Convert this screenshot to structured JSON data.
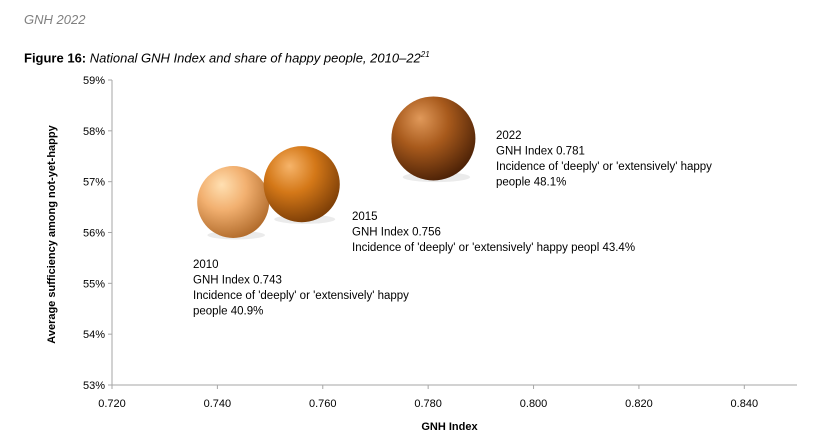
{
  "header": {
    "running_head": "GNH 2022"
  },
  "figure": {
    "label": "Figure 16:",
    "title": "National GNH Index and share of happy people, 2010–22",
    "footnote": "21"
  },
  "chart_data": {
    "type": "scatter",
    "xlabel": "GNH Index",
    "ylabel": "Average sufficiency among not-yet-happy",
    "xlim": [
      0.72,
      0.85
    ],
    "ylim": [
      53,
      59
    ],
    "x_ticks": [
      "0.720",
      "0.740",
      "0.760",
      "0.780",
      "0.800",
      "0.820",
      "0.840"
    ],
    "y_ticks": [
      "53%",
      "54%",
      "55%",
      "56%",
      "57%",
      "58%",
      "59%"
    ],
    "grid": false,
    "points": [
      {
        "x": 0.743,
        "y": 56.6,
        "happy_share": 40.9,
        "color_light": "#ffe0b2",
        "color_mid": "#f2b070",
        "color_dark": "#b06a2a",
        "annotation": [
          "2010",
          "GNH Index 0.743",
          "Incidence of 'deeply' or 'extensively' happy",
          "people 40.9%"
        ]
      },
      {
        "x": 0.756,
        "y": 56.95,
        "happy_share": 43.4,
        "color_light": "#f6b46a",
        "color_mid": "#d47818",
        "color_dark": "#7a3c06",
        "annotation": [
          "2015",
          "GNH Index 0.756",
          "Incidence of 'deeply' or 'extensively' happy peopl 43.4%"
        ]
      },
      {
        "x": 0.781,
        "y": 57.85,
        "happy_share": 48.1,
        "color_light": "#e0995a",
        "color_mid": "#a85a1c",
        "color_dark": "#4a2006",
        "annotation": [
          "2022",
          "GNH Index 0.781",
          "Incidence of 'deeply' or 'extensively' happy",
          "people 48.1%"
        ]
      }
    ]
  }
}
